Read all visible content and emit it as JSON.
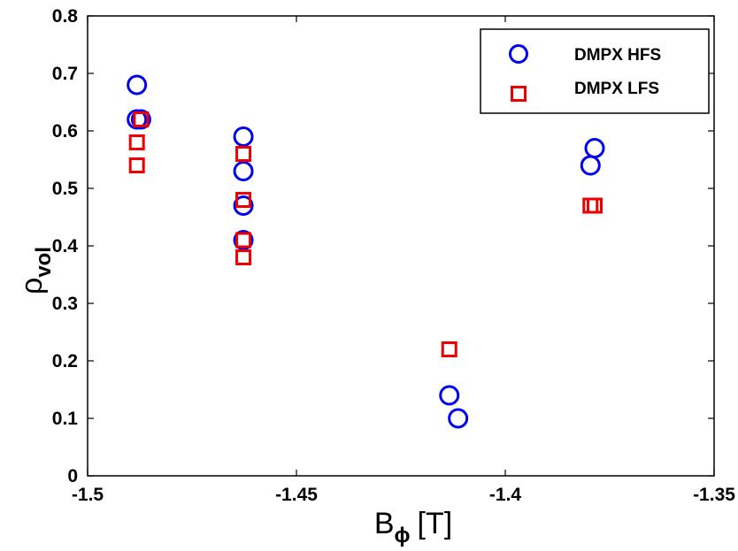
{
  "chart_data": {
    "type": "scatter",
    "xlim": [
      -1.5,
      -1.35
    ],
    "ylim": [
      0,
      0.8
    ],
    "x_ticks": [
      "-1.5",
      "-1.45",
      "-1.4",
      "-1.35"
    ],
    "y_ticks": [
      "0",
      "0.1",
      "0.2",
      "0.3",
      "0.4",
      "0.5",
      "0.6",
      "0.7",
      "0.8"
    ],
    "xlabel": {
      "main": "B",
      "sub": "ϕ",
      "unit": "[T]"
    },
    "ylabel": {
      "main": "ρ",
      "sub": "vol"
    },
    "grid": false,
    "legend_position": "top-right",
    "series": [
      {
        "name": "DMPX HFS",
        "marker": "circle",
        "color": "#0000ee",
        "points": [
          {
            "x": -1.4882,
            "y": 0.68
          },
          {
            "x": -1.4882,
            "y": 0.62
          },
          {
            "x": -1.4872,
            "y": 0.62
          },
          {
            "x": -1.4627,
            "y": 0.59
          },
          {
            "x": -1.4627,
            "y": 0.53
          },
          {
            "x": -1.4627,
            "y": 0.47
          },
          {
            "x": -1.4627,
            "y": 0.41
          },
          {
            "x": -1.4134,
            "y": 0.14
          },
          {
            "x": -1.4113,
            "y": 0.1
          },
          {
            "x": -1.3796,
            "y": 0.54
          },
          {
            "x": -1.3786,
            "y": 0.57
          }
        ]
      },
      {
        "name": "DMPX LFS",
        "marker": "square",
        "color": "#ee0000",
        "points": [
          {
            "x": -1.4872,
            "y": 0.62
          },
          {
            "x": -1.4882,
            "y": 0.58
          },
          {
            "x": -1.4882,
            "y": 0.54
          },
          {
            "x": -1.4627,
            "y": 0.56
          },
          {
            "x": -1.4627,
            "y": 0.48
          },
          {
            "x": -1.4627,
            "y": 0.41
          },
          {
            "x": -1.4627,
            "y": 0.38
          },
          {
            "x": -1.4134,
            "y": 0.22
          },
          {
            "x": -1.3796,
            "y": 0.47
          },
          {
            "x": -1.3786,
            "y": 0.47
          }
        ]
      }
    ]
  }
}
